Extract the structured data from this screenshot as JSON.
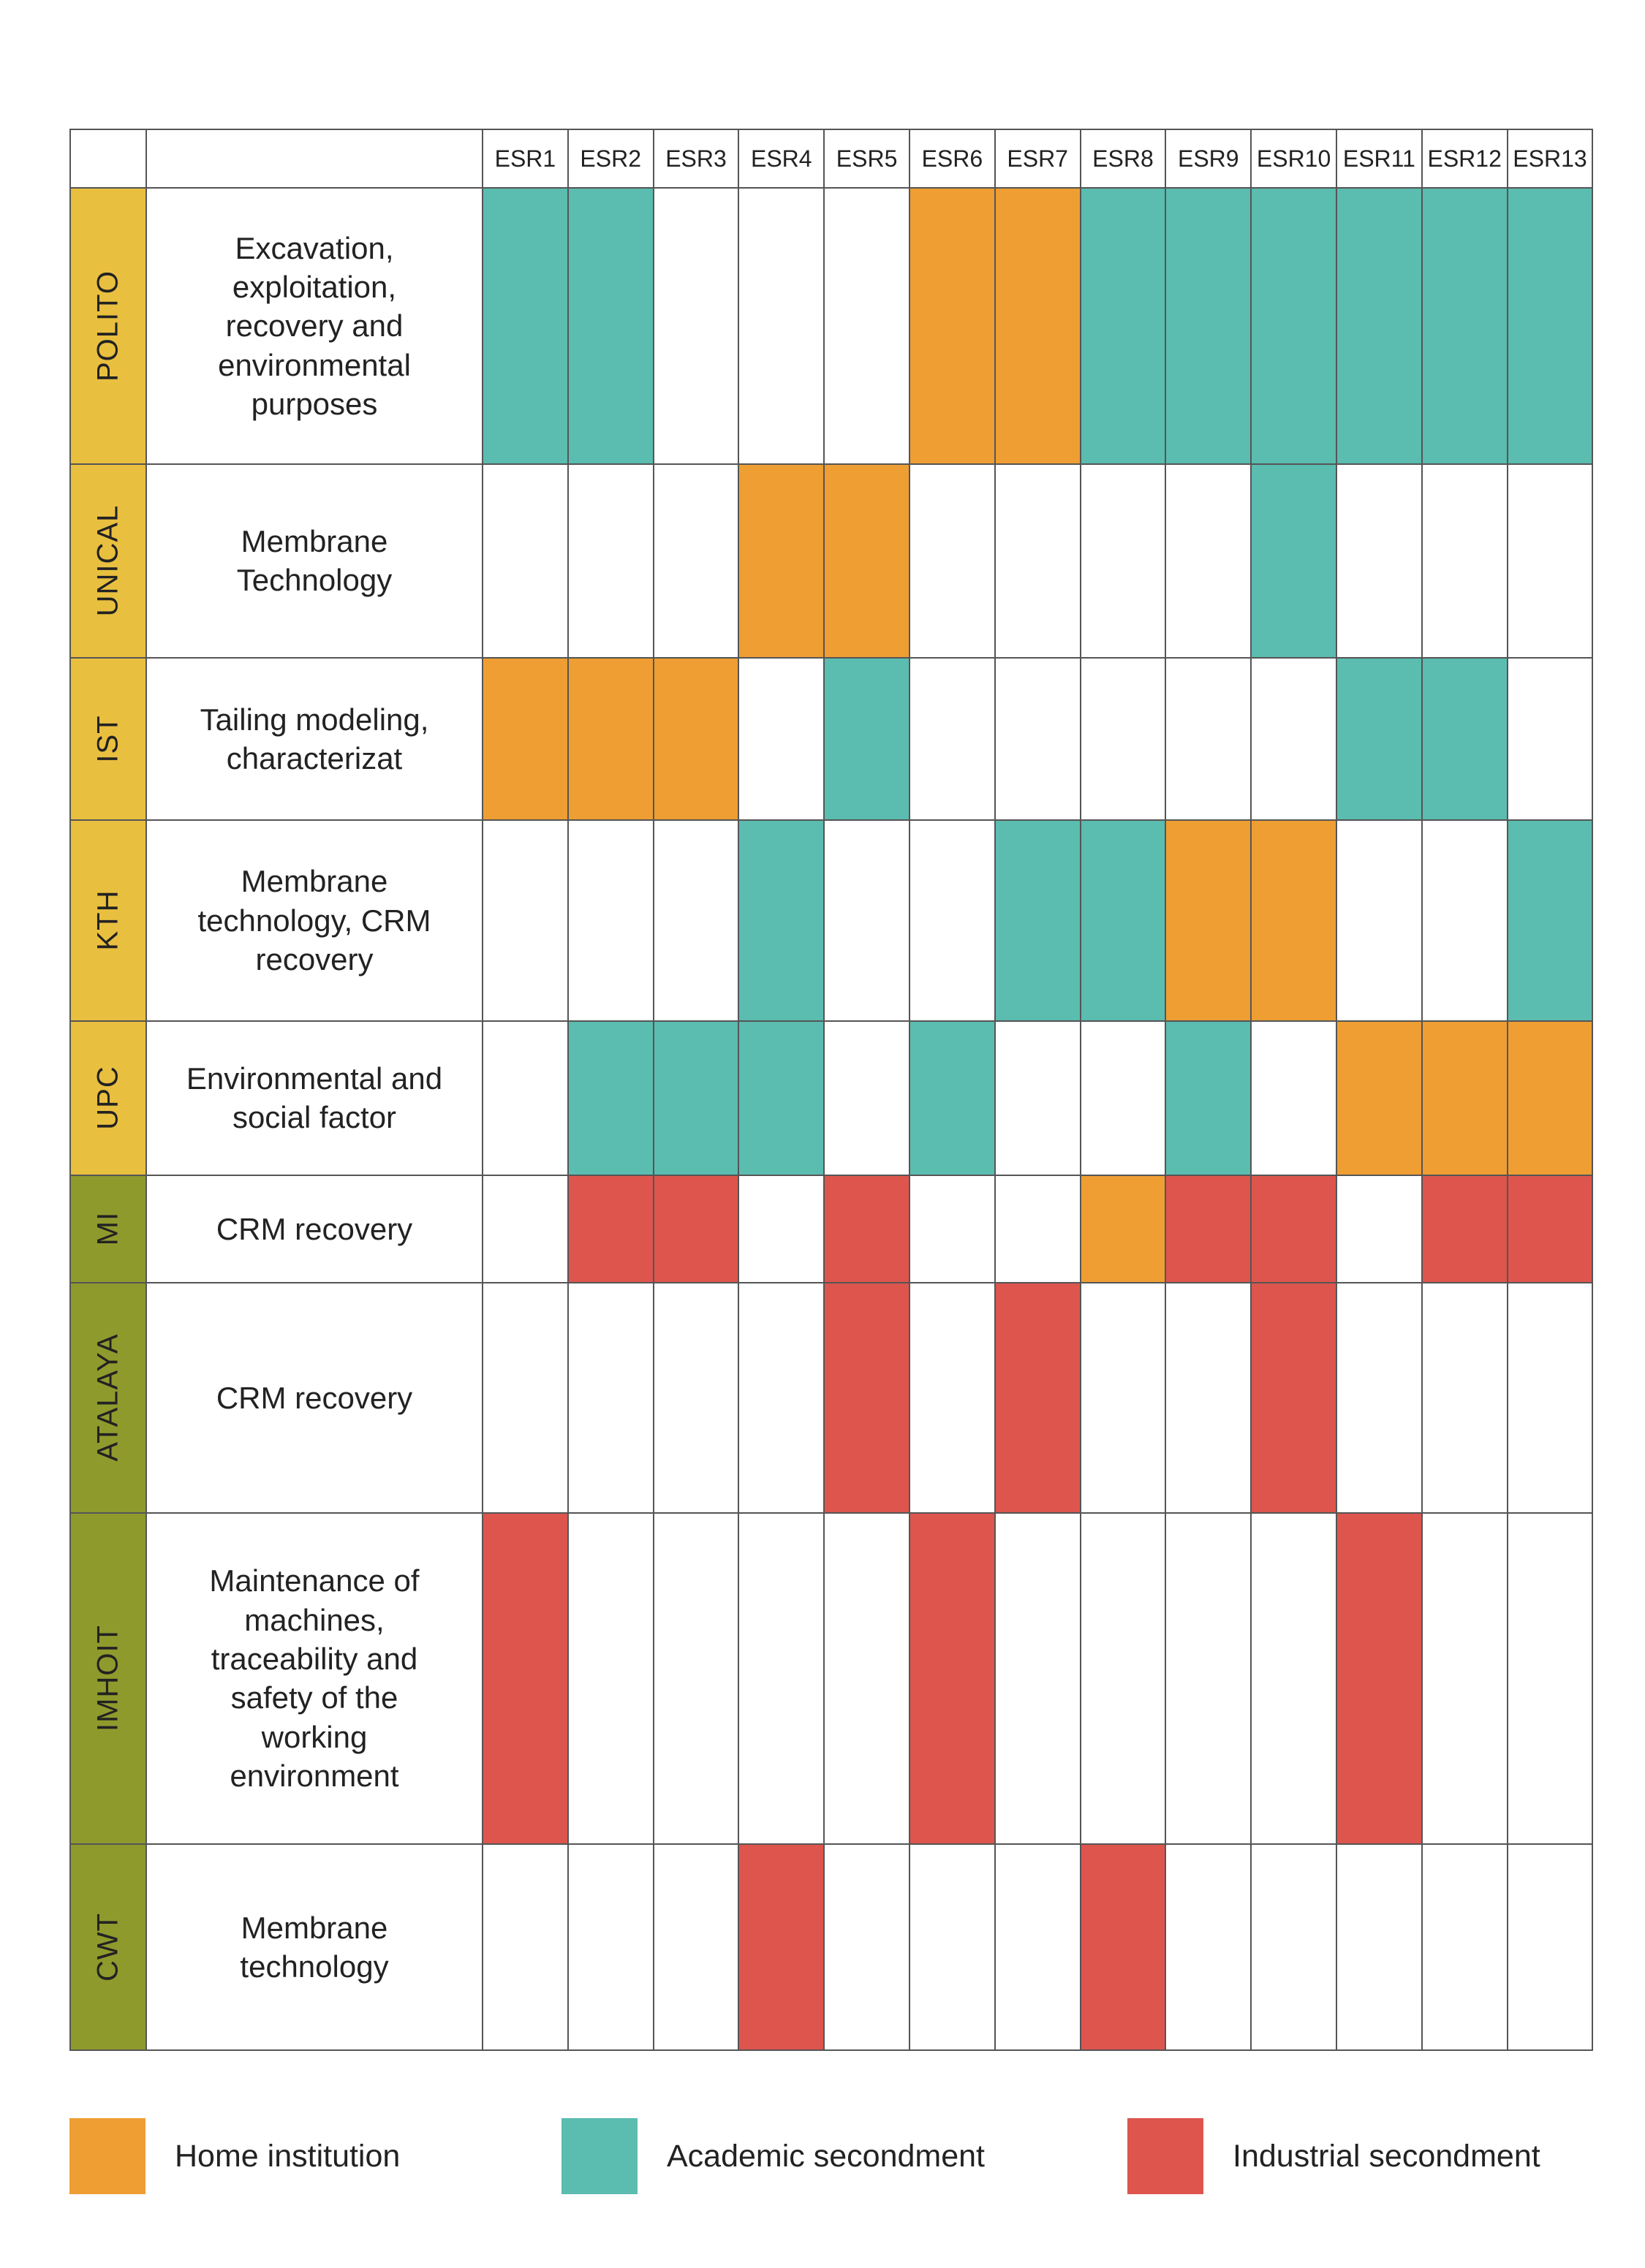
{
  "colors": {
    "home": "#EE9E33",
    "academic": "#5BBCB0",
    "industrial": "#DD554D",
    "academic_partner": "#E9BF40",
    "industrial_partner": "#8F9A2D",
    "empty": "#FFFFFF"
  },
  "columns": [
    "ESR1",
    "ESR2",
    "ESR3",
    "ESR4",
    "ESR5",
    "ESR6",
    "ESR7",
    "ESR8",
    "ESR9",
    "ESR10",
    "ESR11",
    "ESR12",
    "ESR13"
  ],
  "rows": [
    {
      "inst": "POLITO",
      "group": "academic_partner",
      "desc_lines": [
        "Excavation,",
        "exploitation,",
        "recovery and",
        "environmental",
        "purposes"
      ],
      "cells": [
        "A",
        "A",
        "",
        "",
        "",
        "H",
        "H",
        "A",
        "A",
        "A",
        "A",
        "A",
        "A"
      ]
    },
    {
      "inst": "UNICAL",
      "group": "academic_partner",
      "desc_lines": [
        "Membrane",
        "Technology"
      ],
      "cells": [
        "",
        "",
        "",
        "H",
        "H",
        "",
        "",
        "",
        "",
        "A",
        "",
        "",
        ""
      ]
    },
    {
      "inst": "IST",
      "group": "academic_partner",
      "desc_lines": [
        "Tailing modeling,",
        "characterizat"
      ],
      "cells": [
        "H",
        "H",
        "H",
        "",
        "A",
        "",
        "",
        "",
        "",
        "",
        "A",
        "A",
        ""
      ]
    },
    {
      "inst": "KTH",
      "group": "academic_partner",
      "desc_lines": [
        "Membrane",
        "technology, CRM",
        "recovery"
      ],
      "cells": [
        "",
        "",
        "",
        "A",
        "",
        "",
        "A",
        "A",
        "H",
        "H",
        "",
        "",
        "A"
      ]
    },
    {
      "inst": "UPC",
      "group": "academic_partner",
      "desc_lines": [
        "Environmental and",
        "social factor"
      ],
      "cells": [
        "",
        "A",
        "A",
        "A",
        "",
        "A",
        "",
        "",
        "A",
        "",
        "H",
        "H",
        "H"
      ]
    },
    {
      "inst": "MI",
      "group": "industrial_partner",
      "desc_lines": [
        "CRM recovery"
      ],
      "cells": [
        "",
        "I",
        "I",
        "",
        "I",
        "",
        "",
        "H",
        "I",
        "I",
        "",
        "I",
        "I"
      ]
    },
    {
      "inst": "ATALAYA",
      "group": "industrial_partner",
      "desc_lines": [
        "CRM recovery"
      ],
      "cells": [
        "",
        "",
        "",
        "",
        "I",
        "",
        "I",
        "",
        "",
        "I",
        "",
        "",
        ""
      ]
    },
    {
      "inst": "IMHOIT",
      "group": "industrial_partner",
      "desc_lines": [
        "Maintenance of",
        "machines,",
        "traceability and",
        "safety of the",
        "working",
        "environment"
      ],
      "cells": [
        "I",
        "",
        "",
        "",
        "",
        "I",
        "",
        "",
        "",
        "",
        "I",
        "",
        ""
      ]
    },
    {
      "inst": "CWT",
      "group": "industrial_partner",
      "desc_lines": [
        "Membrane",
        "technology"
      ],
      "cells": [
        "",
        "",
        "",
        "I",
        "",
        "",
        "",
        "I",
        "",
        "",
        "",
        "",
        ""
      ]
    }
  ],
  "legend": [
    {
      "key": "H",
      "label": "Home institution"
    },
    {
      "key": "A",
      "label": "Academic secondment"
    },
    {
      "key": "I",
      "label": "Industrial secondment"
    }
  ]
}
